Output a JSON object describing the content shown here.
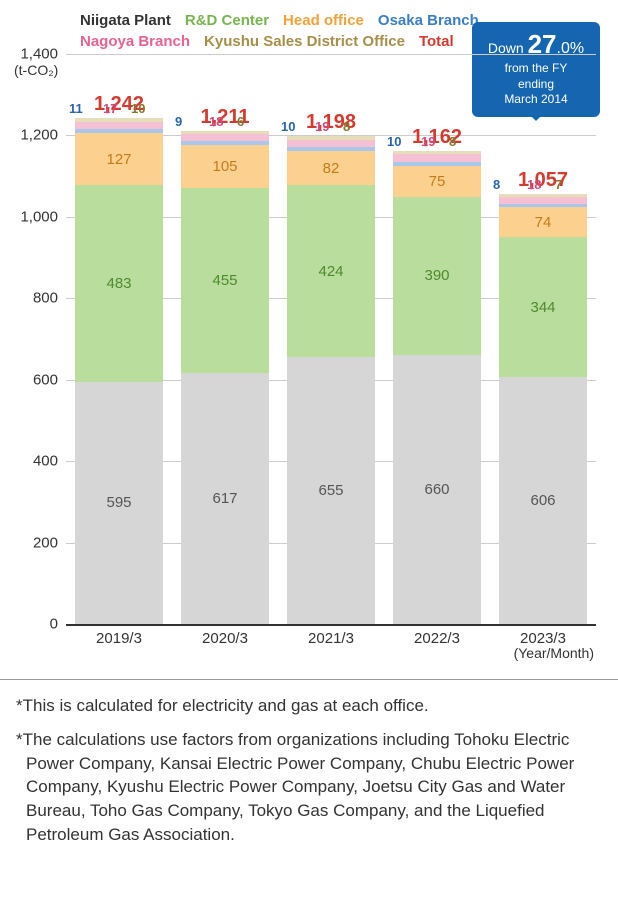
{
  "legend": {
    "items": [
      {
        "label": "Niigata Plant",
        "color": "#333333"
      },
      {
        "label": "R&D Center",
        "color": "#77b64f"
      },
      {
        "label": "Head office",
        "color": "#f2a23b"
      },
      {
        "label": "Osaka Branch",
        "color": "#3a7dc9"
      },
      {
        "label": "Nagoya Branch",
        "color": "#e9628f"
      },
      {
        "label": "Kyushu Sales District Office",
        "color": "#a78f4a"
      },
      {
        "label": "Total",
        "color": "#d63a2e"
      }
    ]
  },
  "yaxis": {
    "label": "(t-CO₂)",
    "min": 0,
    "max": 1400,
    "step": 200,
    "ticks": [
      "0",
      "200",
      "400",
      "600",
      "800",
      "1,000",
      "1,200",
      "1,400"
    ]
  },
  "xaxis": {
    "caption": "(Year/Month)",
    "labels": [
      "2019/3",
      "2020/3",
      "2021/3",
      "2022/3",
      "2023/3"
    ]
  },
  "series_colors": {
    "niigata": "#d6d6d6",
    "rnd": "#b9dd9c",
    "head": "#fcd18f",
    "osaka": "#a9c7ea",
    "nagoya": "#f5c0d3",
    "kyushu": "#e6ddb9"
  },
  "bars": [
    {
      "year": "2019/3",
      "total": "1,242",
      "niigata": 595,
      "rnd": 483,
      "head": 127,
      "osaka": 11,
      "nagoya": 17,
      "kyushu": 10,
      "sum": 1243
    },
    {
      "year": "2020/3",
      "total": "1,211",
      "niigata": 617,
      "rnd": 455,
      "head": 105,
      "osaka": 9,
      "nagoya": 18,
      "kyushu": 6,
      "sum": 1210
    },
    {
      "year": "2021/3",
      "total": "1,198",
      "niigata": 655,
      "rnd": 424,
      "head": 82,
      "osaka": 10,
      "nagoya": 19,
      "kyushu": 8,
      "sum": 1198
    },
    {
      "year": "2022/3",
      "total": "1,162",
      "niigata": 660,
      "rnd": 390,
      "head": 75,
      "osaka": 10,
      "nagoya": 19,
      "kyushu": 8,
      "sum": 1162
    },
    {
      "year": "2023/3",
      "total": "1,057",
      "niigata": 606,
      "rnd": 344,
      "head": 74,
      "osaka": 8,
      "nagoya": 18,
      "kyushu": 7,
      "sum": 1057
    }
  ],
  "callout": {
    "line1_pre": "Down ",
    "big": "27",
    "pt": ".0%",
    "line2": "from the FY",
    "line3": "ending",
    "line4": "March 2014"
  },
  "footnotes": [
    "*This is calculated for electricity and gas at each office.",
    "*The calculations use factors from organizations including Tohoku Electric Power Company, Kansai Electric Power Company, Chubu Electric Power Company, Kyushu Electric Power Company, Joetsu City Gas and Water Bureau, Toho Gas Company, Tokyo Gas Company, and the Liquefied Petroleum Gas Association."
  ]
}
